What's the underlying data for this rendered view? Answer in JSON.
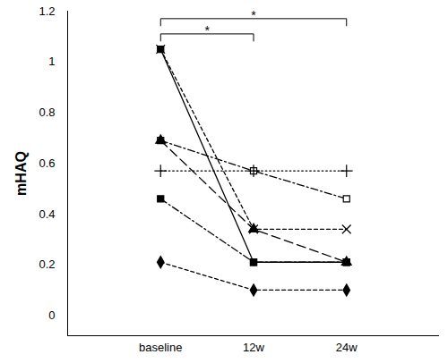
{
  "chart_data": {
    "type": "line",
    "y_label": "mHAQ",
    "categories": [
      "baseline",
      "12w",
      "24w"
    ],
    "ylim": [
      -0.08,
      1.2
    ],
    "yticks": [
      0,
      0.2,
      0.4,
      0.6,
      0.8,
      1,
      1.2
    ],
    "grid": false,
    "series": [
      {
        "color": "#000000",
        "line_style": "solid",
        "marker": "square",
        "values": [
          1.05,
          0.21,
          0.21
        ]
      },
      {
        "color": "#000000",
        "line_style": "dashed",
        "marker": "times",
        "values": [
          1.05,
          0.34,
          0.34
        ]
      },
      {
        "color": "#000000",
        "line_style": "dashdot",
        "marker": "square-open",
        "values": [
          0.69,
          0.57,
          0.46
        ]
      },
      {
        "color": "#000000",
        "line_style": "longdash",
        "marker": "triangle",
        "values": [
          0.69,
          0.34,
          0.21
        ]
      },
      {
        "color": "#000000",
        "line_style": "dotted",
        "marker": "plus",
        "values": [
          0.57,
          0.57,
          0.57
        ]
      },
      {
        "color": "#000000",
        "line_style": "dashdot",
        "marker": "square",
        "values": [
          0.46,
          0.21,
          0.21
        ]
      },
      {
        "color": "#000000",
        "line_style": "dashed",
        "marker": "diamond",
        "values": [
          0.21,
          0.1,
          0.1
        ]
      }
    ],
    "annotations": [
      {
        "text": "*",
        "from": "baseline",
        "to": "12w"
      },
      {
        "text": "*",
        "from": "baseline",
        "to": "24w"
      }
    ]
  }
}
